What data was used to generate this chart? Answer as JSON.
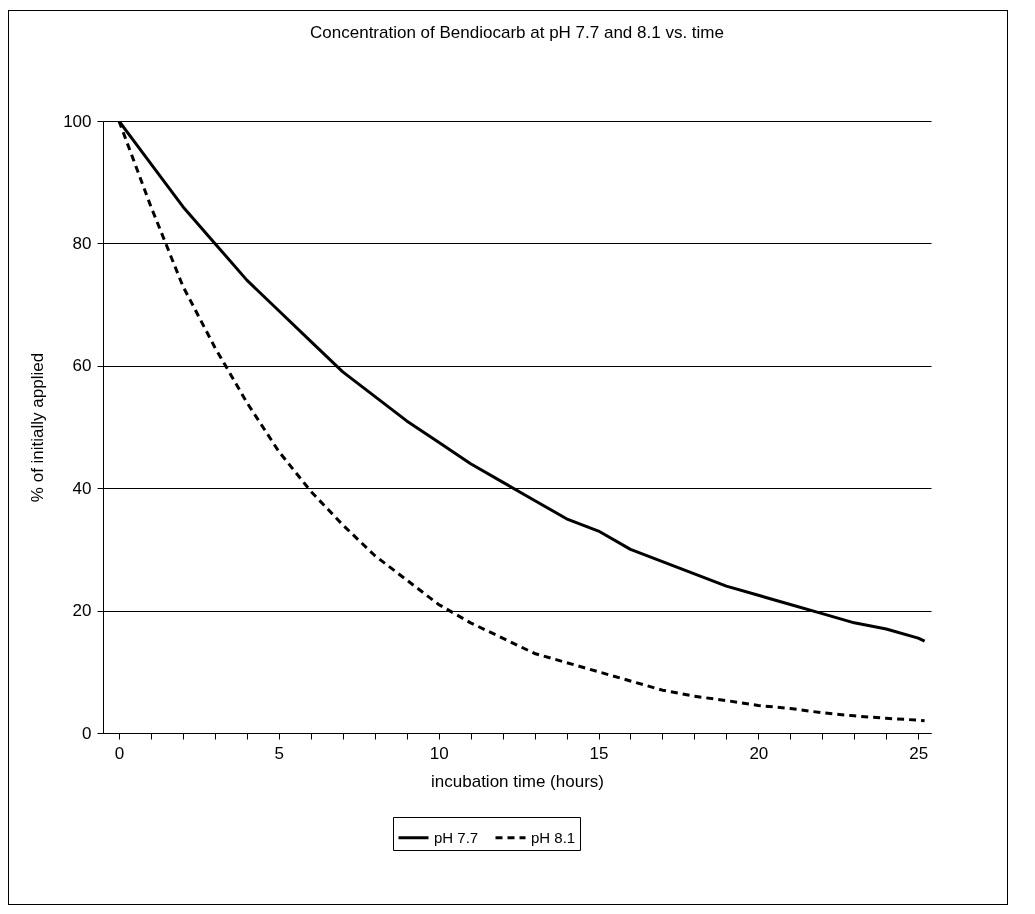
{
  "chart_data": {
    "type": "line",
    "title": "Concentration of Bendiocarb at pH 7.7 and 8.1 vs. time",
    "xlabel": "incubation time (hours)",
    "ylabel": "% of initially applied",
    "xlim": [
      -0.5,
      25.4
    ],
    "xticks": [
      0,
      {
        "value": 1,
        "label": null
      },
      {
        "value": 2,
        "label": null
      },
      {
        "value": 3,
        "label": null
      },
      {
        "value": 4,
        "label": null
      },
      5,
      {
        "value": 6,
        "label": null
      },
      {
        "value": 7,
        "label": null
      },
      {
        "value": 8,
        "label": null
      },
      {
        "value": 9,
        "label": null
      },
      10,
      {
        "value": 11,
        "label": null
      },
      {
        "value": 12,
        "label": null
      },
      {
        "value": 13,
        "label": null
      },
      {
        "value": 14,
        "label": null
      },
      15,
      {
        "value": 16,
        "label": null
      },
      {
        "value": 17,
        "label": null
      },
      {
        "value": 18,
        "label": null
      },
      {
        "value": 19,
        "label": null
      },
      20,
      {
        "value": 21,
        "label": null
      },
      {
        "value": 22,
        "label": null
      },
      {
        "value": 23,
        "label": null
      },
      {
        "value": 24,
        "label": null
      },
      25
    ],
    "ylim": [
      0,
      100
    ],
    "yticks": [
      0,
      20,
      40,
      60,
      80,
      100
    ],
    "grid": "y",
    "legend": "bottom",
    "marker": "none",
    "x": [
      0,
      1,
      2,
      3,
      4,
      5,
      6,
      7,
      8,
      9,
      10,
      11,
      12,
      13,
      14,
      15,
      16,
      17,
      18,
      19,
      20,
      21,
      22,
      23,
      24,
      25,
      25.2
    ],
    "series": [
      {
        "name": "pH 7.7",
        "color": "#000000",
        "line_style": "solid",
        "values": [
          100,
          93,
          86,
          80,
          74,
          69,
          64,
          59,
          55,
          51,
          47.5,
          44,
          41,
          38,
          35,
          33,
          30,
          28,
          26,
          24,
          22.5,
          21,
          19.5,
          18,
          17,
          15.5,
          15
        ]
      },
      {
        "name": "pH 8.1",
        "color": "#000000",
        "line_style": "dashed",
        "values": [
          100,
          86,
          73,
          63,
          54,
          46,
          39.5,
          34,
          29,
          25,
          21,
          18,
          15.5,
          13,
          11.5,
          10,
          8.5,
          7,
          6,
          5.3,
          4.5,
          4,
          3.3,
          2.8,
          2.4,
          2.1,
          2
        ]
      }
    ]
  }
}
